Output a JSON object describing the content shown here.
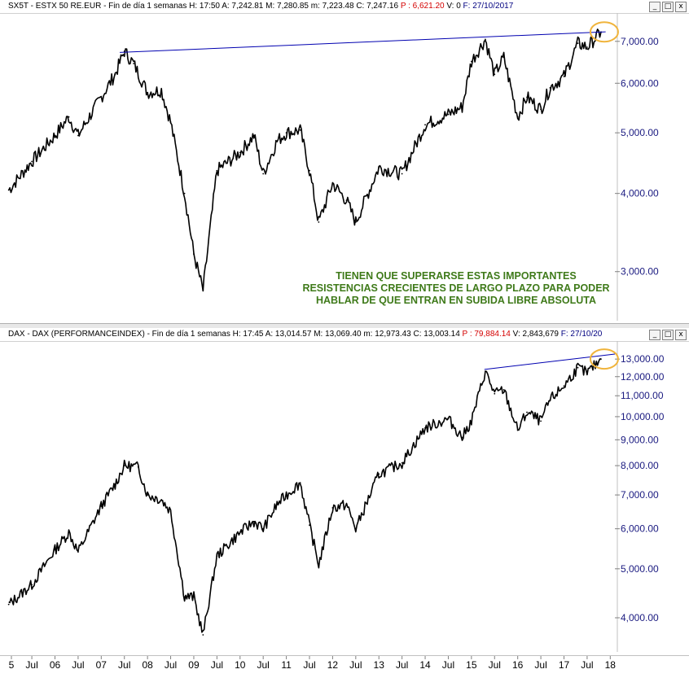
{
  "panels": {
    "top": {
      "header": {
        "ticker": "SX5T - ESTX 50 RE.EUR - Fin de día 1 semanas",
        "h": "H: 17:50",
        "a": "A: 7,242.81",
        "m": "M: 7,280.85",
        "mn": "m: 7,223.48",
        "c": "C: 7,247.16",
        "p": "P : 6,621.20",
        "v": "V: 0",
        "f": "F: 27/10/2017"
      },
      "annotation": [
        "TIENEN QUE SUPERARSE ESTAS IMPORTANTES",
        "RESISTENCIAS CRECIENTES DE LARGO PLAZO PARA PODER",
        "HABLAR DE QUE ENTRAN EN SUBIDA LIBRE ABSOLUTA"
      ]
    },
    "bottom": {
      "header": {
        "ticker": "DAX - DAX (PERFORMANCEINDEX) - Fin de día 1 semanas",
        "h": "H: 17:45",
        "a": "A: 13,014.57",
        "m": "M: 13,069.40",
        "mn": "m: 12,973.43",
        "c": "C: 13,003.14",
        "p": "P : 79,884.14",
        "v": "V: 2,843,679",
        "f": "F: 27/10/20"
      }
    }
  },
  "window_buttons": {
    "minimize": "_",
    "maximize": "□",
    "close": "x"
  },
  "colors": {
    "price": "#000000",
    "trendline": "#0000b0",
    "highlight": "#f0b43c",
    "axis_text": "#1a1a80",
    "annotation": "#3f7a1a"
  },
  "x_axis_labels": [
    "5",
    "Jul",
    "06",
    "Jul",
    "07",
    "Jul",
    "08",
    "Jul",
    "09",
    "Jul",
    "10",
    "Jul",
    "11",
    "Jul",
    "12",
    "Jul",
    "13",
    "Jul",
    "14",
    "Jul",
    "15",
    "Jul",
    "16",
    "Jul",
    "17",
    "Jul",
    "18"
  ],
  "chart_data": [
    {
      "type": "line",
      "title": "SX5T - ESTX 50 RE.EUR - Fin de día 1 semanas",
      "scale": "log",
      "yticks": [
        "3,000.00",
        "4,000.00",
        "5,000.00",
        "6,000.00",
        "7,000.00"
      ],
      "ylim": [
        2550,
        7450
      ],
      "x": [
        2005.0,
        2005.5,
        2006.0,
        2006.3,
        2006.5,
        2007.0,
        2007.3,
        2007.5,
        2007.7,
        2008.0,
        2008.3,
        2008.5,
        2008.8,
        2009.0,
        2009.2,
        2009.5,
        2010.0,
        2010.3,
        2010.5,
        2010.8,
        2011.0,
        2011.3,
        2011.5,
        2011.7,
        2012.0,
        2012.3,
        2012.5,
        2013.0,
        2013.5,
        2014.0,
        2014.5,
        2014.8,
        2015.0,
        2015.3,
        2015.5,
        2015.7,
        2016.0,
        2016.2,
        2016.5,
        2016.7,
        2017.0,
        2017.3,
        2017.5,
        2017.8
      ],
      "y": [
        4050,
        4500,
        4950,
        5300,
        4950,
        5700,
        6200,
        6750,
        6450,
        5800,
        5850,
        5200,
        4000,
        3200,
        2800,
        4350,
        4650,
        4950,
        4300,
        4850,
        5000,
        5050,
        4350,
        3600,
        4150,
        3900,
        3600,
        4400,
        4300,
        5150,
        5350,
        5500,
        6500,
        7050,
        6200,
        6600,
        5300,
        5700,
        5450,
        5900,
        6150,
        6950,
        6850,
        7247
      ],
      "series": [
        {
          "name": "SX5T",
          "trendline": {
            "x": [
              2007.4,
              2017.9
            ],
            "y": [
              6720,
              7250
            ]
          }
        }
      ]
    },
    {
      "type": "line",
      "title": "DAX - DAX (PERFORMANCEINDEX) - Fin de día 1 semanas",
      "scale": "log",
      "yticks": [
        "4,000.00",
        "5,000.00",
        "6,000.00",
        "7,000.00",
        "8,000.00",
        "9,000.00",
        "10,000.00",
        "11,000.00",
        "12,000.00",
        "13,000.00"
      ],
      "ylim": [
        3500,
        13400
      ],
      "x": [
        2005.0,
        2005.5,
        2006.0,
        2006.3,
        2006.5,
        2007.0,
        2007.3,
        2007.5,
        2007.8,
        2008.0,
        2008.3,
        2008.5,
        2008.8,
        2009.0,
        2009.2,
        2009.5,
        2010.0,
        2010.3,
        2010.5,
        2010.8,
        2011.0,
        2011.3,
        2011.5,
        2011.7,
        2012.0,
        2012.3,
        2012.5,
        2013.0,
        2013.5,
        2014.0,
        2014.5,
        2014.8,
        2015.0,
        2015.3,
        2015.5,
        2015.7,
        2016.0,
        2016.2,
        2016.5,
        2016.7,
        2017.0,
        2017.3,
        2017.5,
        2017.8
      ],
      "y": [
        4250,
        4650,
        5450,
        5900,
        5400,
        6650,
        7350,
        8000,
        7950,
        7000,
        6850,
        6500,
        4400,
        4400,
        3700,
        5300,
        5900,
        6200,
        6000,
        6700,
        7000,
        7400,
        6100,
        5100,
        6600,
        6700,
        6000,
        7700,
        8100,
        9500,
        9900,
        9100,
        9800,
        12300,
        11100,
        11300,
        9400,
        10200,
        9800,
        10800,
        11500,
        12500,
        12200,
        13003
      ],
      "series": [
        {
          "name": "DAX",
          "trendline": {
            "x": [
              2015.28,
              2018.1
            ],
            "y": [
              12400,
              13300
            ]
          }
        }
      ]
    }
  ]
}
